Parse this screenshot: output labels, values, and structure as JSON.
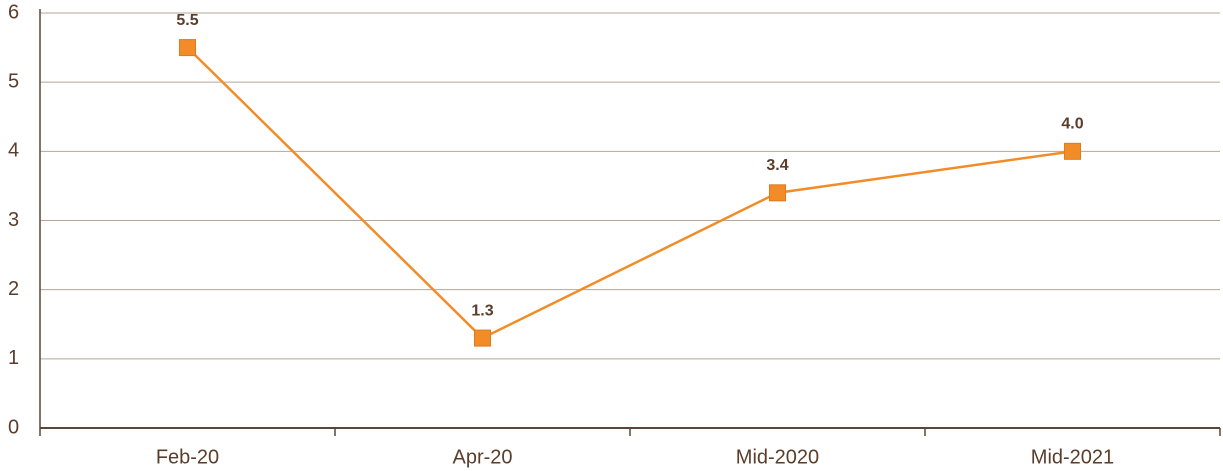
{
  "chart_data": {
    "type": "line",
    "categories": [
      "Feb-20",
      "Apr-20",
      "Mid-2020",
      "Mid-2021"
    ],
    "values": [
      5.5,
      1.3,
      3.4,
      4.0
    ],
    "value_labels": [
      "5.5",
      "1.3",
      "3.4",
      "4.0"
    ],
    "color": "#f28c28",
    "ylim": [
      0,
      6
    ],
    "yticks": [
      0,
      1,
      2,
      3,
      4,
      5,
      6
    ],
    "grid": true
  }
}
